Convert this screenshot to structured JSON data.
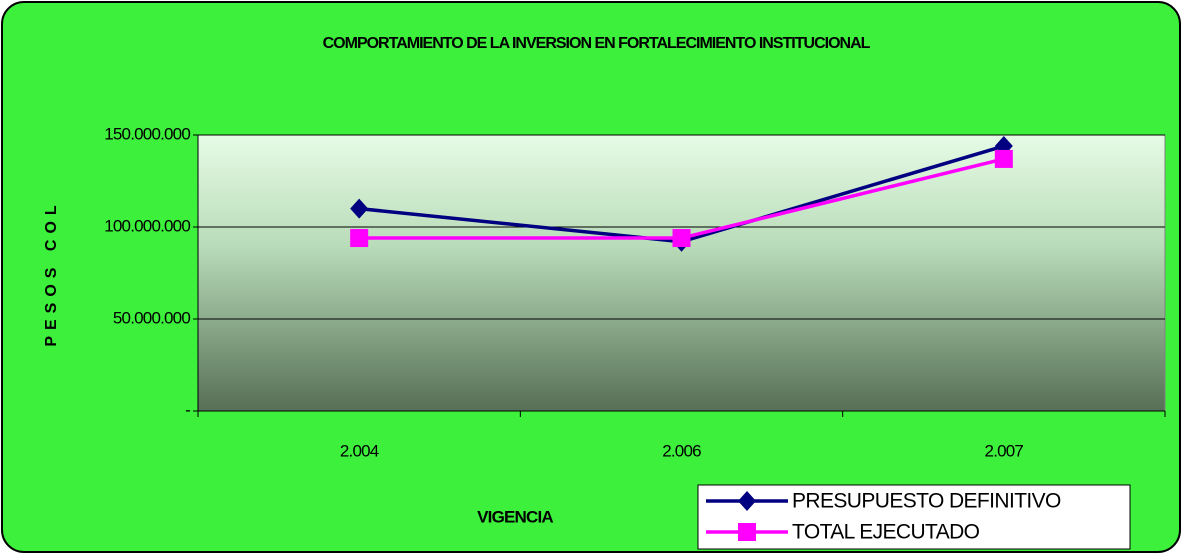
{
  "chart_data": {
    "type": "line",
    "title": "COMPORTAMIENTO DE LA INVERSION EN FORTALECIMIENTO INSTITUCIONAL",
    "xlabel": "VIGENCIA",
    "ylabel": "PESOS COL",
    "categories": [
      "2.004",
      "2.006",
      "2.007"
    ],
    "series": [
      {
        "name": "PRESUPUESTO DEFINITIVO",
        "color": "#000080",
        "marker": "diamond",
        "values": [
          110000000,
          92000000,
          144000000
        ]
      },
      {
        "name": "TOTAL EJECUTADO",
        "color": "#ff00ff",
        "marker": "square",
        "values": [
          94000000,
          94000000,
          137000000
        ]
      }
    ],
    "ylim": [
      0,
      150000000
    ],
    "yticks": [
      {
        "value": 0,
        "label": "-"
      },
      {
        "value": 50000000,
        "label": "50.000.000"
      },
      {
        "value": 100000000,
        "label": "100.000.000"
      },
      {
        "value": 150000000,
        "label": "150.000.000"
      }
    ],
    "grid": true,
    "legend": "bottom-right"
  }
}
